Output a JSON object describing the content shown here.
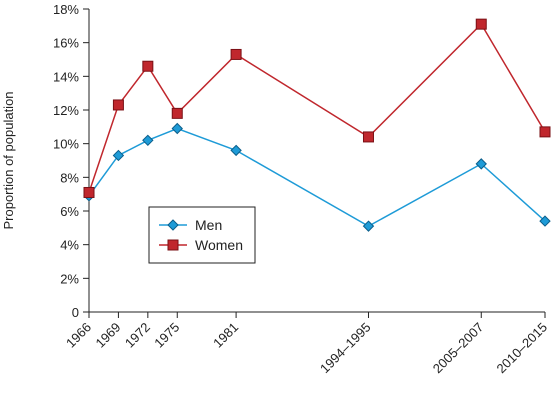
{
  "chart_data": {
    "type": "line",
    "title": "",
    "xlabel": "",
    "ylabel": "Proportion of population",
    "categories": [
      "1966",
      "1969",
      "1972",
      "1975",
      "1981",
      "1994–1995",
      "2005–2007",
      "2010–2015"
    ],
    "x_positions": [
      1966,
      1969,
      1972,
      1975,
      1981,
      1994.5,
      2006,
      2012.5
    ],
    "ylim": [
      0,
      18
    ],
    "yticks": [
      0,
      2,
      4,
      6,
      8,
      10,
      12,
      14,
      16,
      18
    ],
    "ytick_labels": [
      "0",
      "2%",
      "4%",
      "6%",
      "8%",
      "10%",
      "12%",
      "14%",
      "16%",
      "18%"
    ],
    "grid": false,
    "legend_position": "center-left",
    "series": [
      {
        "name": "Men",
        "color": "#1e9bd7",
        "marker": "diamond",
        "values": [
          6.9,
          9.3,
          10.2,
          10.9,
          9.6,
          5.1,
          8.8,
          5.4
        ]
      },
      {
        "name": "Women",
        "color": "#c0272d",
        "marker": "square",
        "values": [
          7.1,
          12.3,
          14.6,
          11.8,
          15.3,
          10.4,
          17.1,
          10.7
        ]
      }
    ]
  }
}
